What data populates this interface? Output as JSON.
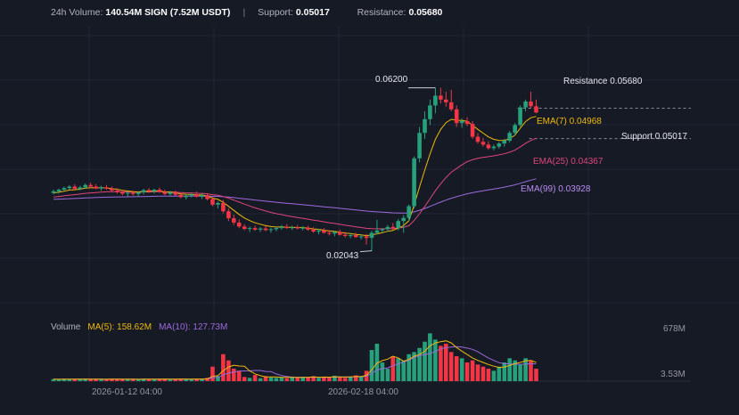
{
  "header": {
    "volume_label": "24h Volume:",
    "volume_value": "140.54M SIGN (7.52M USDT)",
    "separator": "|",
    "support_label": "Support:",
    "support_value": "0.05017",
    "resistance_label": "Resistance:",
    "resistance_value": "0.05680"
  },
  "volume_panel": {
    "title": "Volume",
    "ma5_label": "MA(5): 158.62M",
    "ma10_label": "MA(10): 127.73M",
    "max_label": "678M",
    "min_label": "3.53M"
  },
  "annotations": {
    "high": "0.06200",
    "low": "0.02043",
    "resistance": "Resistance 0.05680",
    "support": "Support 0.05017",
    "ema7": "EMA(7) 0.04968",
    "ema25": "EMA(25) 0.04367",
    "ema99": "EMA(99) 0.03928"
  },
  "colors": {
    "background": "#161a25",
    "up": "#26a17b",
    "down": "#f23645",
    "ema7": "#f0b90b",
    "ema25": "#e0457b",
    "ema99": "#9c6ade",
    "ma5": "#f0b90b",
    "ma10": "#9c6ade",
    "grid": "#232734"
  },
  "chart_data": {
    "type": "candlestick",
    "x_tick_labels": [
      "2026-01-12 04:00",
      "2026-02-18 04:00"
    ],
    "ohlc": [
      [
        0.0352,
        0.036,
        0.0348,
        0.0356
      ],
      [
        0.0356,
        0.0363,
        0.035,
        0.036
      ],
      [
        0.036,
        0.0368,
        0.0355,
        0.0364
      ],
      [
        0.0364,
        0.0372,
        0.036,
        0.0368
      ],
      [
        0.0368,
        0.0374,
        0.036,
        0.0362
      ],
      [
        0.0362,
        0.037,
        0.0358,
        0.0366
      ],
      [
        0.0366,
        0.0376,
        0.0362,
        0.0372
      ],
      [
        0.0372,
        0.0378,
        0.0364,
        0.0368
      ],
      [
        0.0368,
        0.0374,
        0.0361,
        0.0363
      ],
      [
        0.0363,
        0.037,
        0.0357,
        0.0366
      ],
      [
        0.0366,
        0.0372,
        0.036,
        0.0363
      ],
      [
        0.0363,
        0.0368,
        0.0355,
        0.0358
      ],
      [
        0.0358,
        0.0364,
        0.035,
        0.0355
      ],
      [
        0.0355,
        0.036,
        0.0346,
        0.035
      ],
      [
        0.035,
        0.0356,
        0.0343,
        0.0352
      ],
      [
        0.0352,
        0.0358,
        0.0345,
        0.0349
      ],
      [
        0.0349,
        0.0356,
        0.0342,
        0.0353
      ],
      [
        0.0353,
        0.0362,
        0.0348,
        0.0359
      ],
      [
        0.0359,
        0.0364,
        0.0352,
        0.0356
      ],
      [
        0.0356,
        0.0363,
        0.035,
        0.036
      ],
      [
        0.036,
        0.0365,
        0.0352,
        0.0354
      ],
      [
        0.0354,
        0.036,
        0.0346,
        0.0349
      ],
      [
        0.0349,
        0.0357,
        0.0344,
        0.0353
      ],
      [
        0.0353,
        0.0358,
        0.0345,
        0.0347
      ],
      [
        0.0347,
        0.0352,
        0.0338,
        0.0341
      ],
      [
        0.0341,
        0.0348,
        0.0335,
        0.0345
      ],
      [
        0.0345,
        0.0352,
        0.034,
        0.0348
      ],
      [
        0.0348,
        0.0355,
        0.034,
        0.0342
      ],
      [
        0.0342,
        0.035,
        0.0336,
        0.0346
      ],
      [
        0.0346,
        0.0351,
        0.0333,
        0.0336
      ],
      [
        0.0336,
        0.0342,
        0.0318,
        0.0322
      ],
      [
        0.0322,
        0.033,
        0.0312,
        0.0326
      ],
      [
        0.0326,
        0.0334,
        0.03,
        0.0305
      ],
      [
        0.0305,
        0.0312,
        0.028,
        0.0287
      ],
      [
        0.0287,
        0.0296,
        0.027,
        0.0276
      ],
      [
        0.0276,
        0.0284,
        0.0262,
        0.0266
      ],
      [
        0.0266,
        0.0272,
        0.0256,
        0.026
      ],
      [
        0.026,
        0.0266,
        0.0252,
        0.0262
      ],
      [
        0.0262,
        0.0268,
        0.0255,
        0.0258
      ],
      [
        0.0258,
        0.0265,
        0.0252,
        0.0261
      ],
      [
        0.0261,
        0.0267,
        0.0254,
        0.0257
      ],
      [
        0.0257,
        0.0263,
        0.025,
        0.0259
      ],
      [
        0.0259,
        0.0266,
        0.0254,
        0.0262
      ],
      [
        0.0262,
        0.027,
        0.0258,
        0.0265
      ],
      [
        0.0265,
        0.0272,
        0.026,
        0.0262
      ],
      [
        0.0262,
        0.0268,
        0.0257,
        0.0264
      ],
      [
        0.0264,
        0.027,
        0.0259,
        0.0261
      ],
      [
        0.0261,
        0.0267,
        0.0256,
        0.0263
      ],
      [
        0.0263,
        0.0268,
        0.0255,
        0.0258
      ],
      [
        0.0258,
        0.0264,
        0.025,
        0.0253
      ],
      [
        0.0253,
        0.026,
        0.0246,
        0.0256
      ],
      [
        0.0256,
        0.0262,
        0.0248,
        0.025
      ],
      [
        0.025,
        0.0257,
        0.0243,
        0.0248
      ],
      [
        0.0248,
        0.0255,
        0.0241,
        0.0252
      ],
      [
        0.0252,
        0.0258,
        0.0243,
        0.0245
      ],
      [
        0.0245,
        0.0252,
        0.0238,
        0.0242
      ],
      [
        0.0242,
        0.0249,
        0.0236,
        0.0244
      ],
      [
        0.0244,
        0.025,
        0.0237,
        0.0239
      ],
      [
        0.0239,
        0.0246,
        0.0233,
        0.0241
      ],
      [
        0.0241,
        0.0247,
        0.022,
        0.0237
      ],
      [
        0.0237,
        0.0255,
        0.0204,
        0.025
      ],
      [
        0.025,
        0.0283,
        0.0246,
        0.0256
      ],
      [
        0.0256,
        0.0262,
        0.025,
        0.0259
      ],
      [
        0.0259,
        0.027,
        0.0253,
        0.0265
      ],
      [
        0.0265,
        0.0275,
        0.0258,
        0.0262
      ],
      [
        0.0262,
        0.0285,
        0.0256,
        0.028
      ],
      [
        0.028,
        0.0295,
        0.025,
        0.0288
      ],
      [
        0.0288,
        0.0322,
        0.028,
        0.0318
      ],
      [
        0.0318,
        0.0445,
        0.0312,
        0.044
      ],
      [
        0.044,
        0.052,
        0.043,
        0.0505
      ],
      [
        0.0505,
        0.056,
        0.049,
        0.054
      ],
      [
        0.054,
        0.059,
        0.0525,
        0.0575
      ],
      [
        0.0575,
        0.062,
        0.0555,
        0.06
      ],
      [
        0.06,
        0.062,
        0.058,
        0.059
      ],
      [
        0.059,
        0.061,
        0.0572,
        0.0583
      ],
      [
        0.0583,
        0.0615,
        0.056,
        0.0565
      ],
      [
        0.0565,
        0.0575,
        0.052,
        0.053
      ],
      [
        0.053,
        0.0542,
        0.0518,
        0.0535
      ],
      [
        0.0535,
        0.0545,
        0.0522,
        0.0528
      ],
      [
        0.0528,
        0.0535,
        0.049,
        0.0495
      ],
      [
        0.0495,
        0.0505,
        0.0478,
        0.0482
      ],
      [
        0.0482,
        0.0492,
        0.047,
        0.0475
      ],
      [
        0.0475,
        0.0484,
        0.0462,
        0.0466
      ],
      [
        0.0466,
        0.0475,
        0.046,
        0.047
      ],
      [
        0.047,
        0.0482,
        0.0465,
        0.0478
      ],
      [
        0.0478,
        0.049,
        0.047,
        0.0485
      ],
      [
        0.0485,
        0.051,
        0.048,
        0.0505
      ],
      [
        0.0505,
        0.053,
        0.0498,
        0.0525
      ],
      [
        0.0525,
        0.0575,
        0.052,
        0.057
      ],
      [
        0.057,
        0.059,
        0.056,
        0.0585
      ],
      [
        0.0585,
        0.061,
        0.0568,
        0.0573
      ],
      [
        0.0573,
        0.059,
        0.0555,
        0.0557
      ]
    ],
    "volume": [
      0.5,
      0.4,
      0.6,
      0.5,
      0.4,
      0.6,
      0.5,
      0.4,
      0.5,
      0.4,
      0.5,
      0.6,
      0.4,
      0.5,
      0.4,
      0.5,
      0.4,
      0.6,
      0.5,
      0.4,
      0.5,
      0.6,
      0.4,
      0.5,
      0.6,
      0.5,
      0.4,
      0.6,
      0.5,
      0.8,
      3.5,
      1.2,
      6.5,
      5.0,
      3.0,
      2.5,
      1.0,
      0.8,
      1.5,
      0.7,
      1.2,
      0.9,
      0.8,
      1.0,
      0.7,
      1.1,
      0.8,
      1.0,
      0.9,
      1.2,
      0.8,
      1.0,
      0.9,
      1.3,
      1.0,
      0.8,
      1.1,
      1.4,
      1.2,
      2.5,
      7.5,
      9.0,
      4.5,
      3.0,
      6.0,
      5.5,
      5.0,
      6.5,
      7.0,
      8.0,
      9.5,
      11.5,
      10.0,
      8.5,
      9.0,
      7.0,
      6.0,
      5.5,
      4.5,
      5.0,
      4.0,
      3.5,
      3.0,
      2.5,
      3.5,
      4.5,
      5.5,
      5.0,
      4.0,
      5.5,
      5.0,
      3.0
    ],
    "y_scale": {
      "min": 0.0185,
      "max": 0.0635
    },
    "resistance": 0.0568,
    "support": 0.05017
  }
}
